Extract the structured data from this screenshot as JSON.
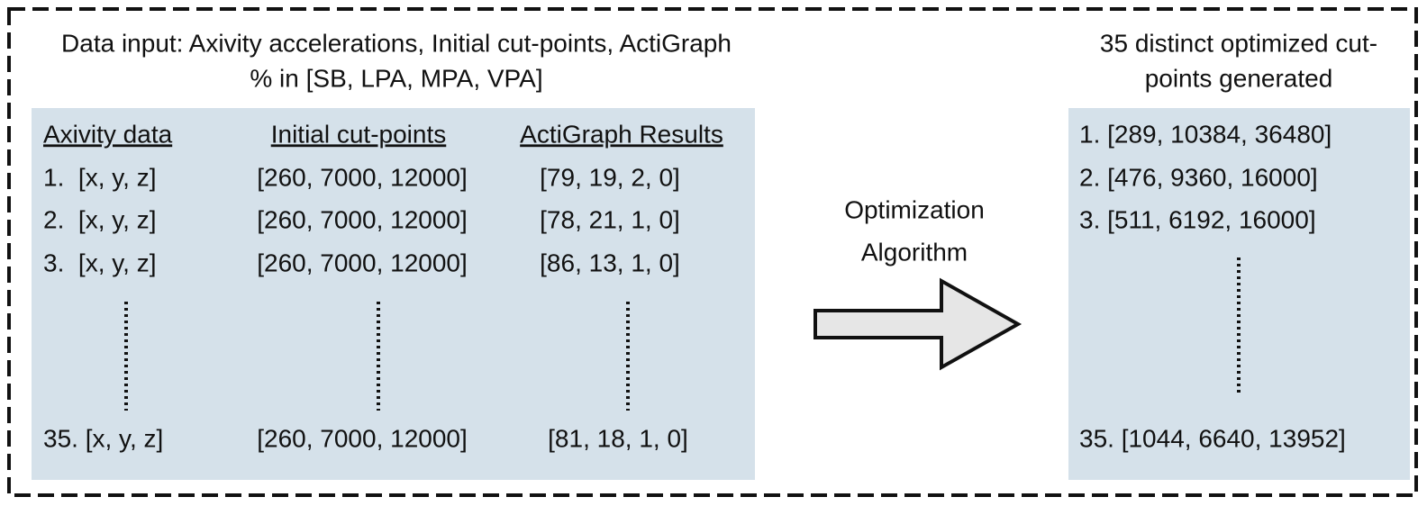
{
  "input": {
    "caption": [
      "Data input: Axivity accelerations, Initial cut-points, ActiGraph",
      "% in [SB, LPA, MPA, VPA]"
    ],
    "headers": [
      "Axivity data",
      "Initial cut-points",
      "ActiGraph Results"
    ],
    "rows": [
      [
        "1.  [x, y, z]",
        "[260, 7000, 12000]",
        "[79, 19, 2, 0]"
      ],
      [
        "2.  [x, y, z]",
        "[260, 7000, 12000]",
        "[78, 21, 1, 0]"
      ],
      [
        "3.  [x, y, z]",
        "[260, 7000, 12000]",
        "[86, 13, 1, 0]"
      ],
      [
        "35. [x, y, z]",
        "[260, 7000, 12000]",
        "[81, 18, 1, 0]"
      ]
    ]
  },
  "process": {
    "label": [
      "Optimization",
      "Algorithm"
    ]
  },
  "output": {
    "caption": [
      "35 distinct optimized cut-",
      "points generated"
    ],
    "rows": [
      "1. [289, 10384, 36480]",
      "2. [476, 9360, 16000]",
      "3. [511, 6192, 16000]",
      "35. [1044, 6640, 13952]"
    ]
  }
}
